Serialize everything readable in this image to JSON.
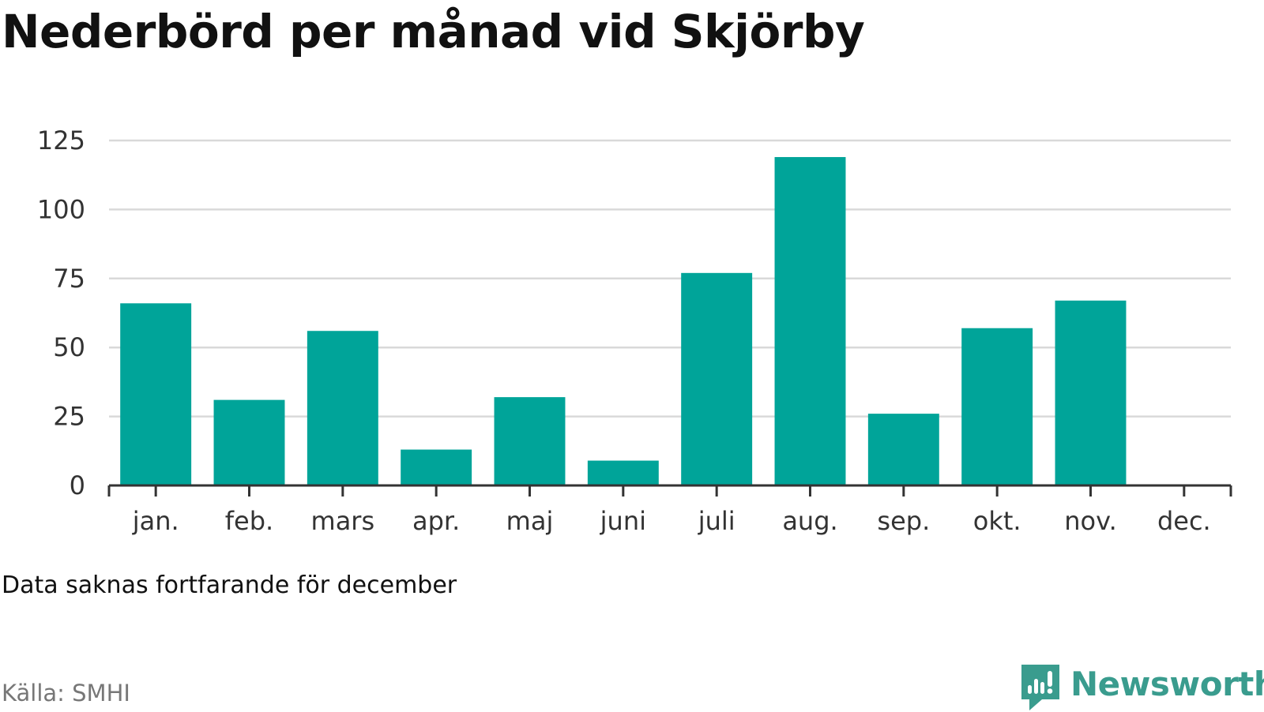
{
  "chart_data": {
    "type": "bar",
    "title": "Nederbörd per månad vid Skjörby",
    "categories": [
      "jan.",
      "feb.",
      "mars",
      "apr.",
      "maj",
      "juni",
      "juli",
      "aug.",
      "sep.",
      "okt.",
      "nov.",
      "dec."
    ],
    "values": [
      66,
      31,
      56,
      13,
      32,
      9,
      77,
      119,
      26,
      57,
      67,
      null
    ],
    "xlabel": "",
    "ylabel": "",
    "ylim": [
      0,
      125
    ],
    "yticks": [
      0,
      25,
      50,
      75,
      100,
      125
    ],
    "grid": true,
    "legend": "none",
    "bar_color": "#00a499"
  },
  "footnote": "Data saknas fortfarande för december",
  "source": "Källa: SMHI",
  "brand": {
    "name": "Newsworthy",
    "icon": "newsworthy-logo-icon",
    "color": "#3a9c8e"
  }
}
